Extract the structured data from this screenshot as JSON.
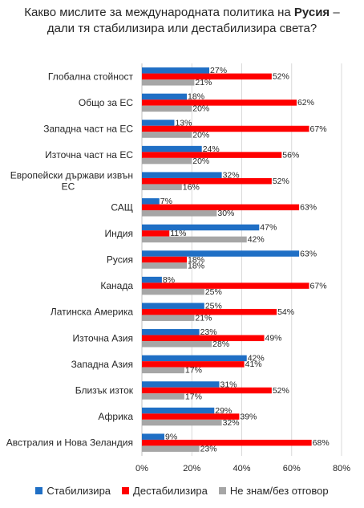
{
  "title": {
    "line1_prefix": "Какво мислите за международната политика на ",
    "line1_bold": "Русия",
    "line1_suffix": " –",
    "line2": "дали тя стабилизира или дестабилизира света?"
  },
  "colors": {
    "stabilize": "#1f6fc5",
    "destabilize": "#ff0000",
    "dontknow": "#a6a6a6",
    "grid": "#d9d9d9",
    "text": "#262626"
  },
  "chart_data": {
    "type": "bar",
    "orientation": "horizontal",
    "categories": [
      "Глобална стойност",
      "Общо за ЕС",
      "Западна част на ЕС",
      "Източна част на ЕС",
      "Европейски държави извън ЕС",
      "САЩ",
      "Индия",
      "Русия",
      "Канада",
      "Латинска Америка",
      "Източна Азия",
      "Западна Азия",
      "Близък изток",
      "Африка",
      "Австралия и Нова Зеландия"
    ],
    "series": [
      {
        "name": "Стабилизира",
        "values": [
          27,
          18,
          13,
          24,
          32,
          7,
          47,
          63,
          8,
          25,
          23,
          42,
          31,
          29,
          9
        ]
      },
      {
        "name": "Дестабилизира",
        "values": [
          52,
          62,
          67,
          56,
          52,
          63,
          11,
          18,
          67,
          54,
          49,
          41,
          52,
          39,
          68
        ]
      },
      {
        "name": "Не знам/без отговор",
        "values": [
          21,
          20,
          20,
          20,
          16,
          30,
          42,
          18,
          25,
          21,
          28,
          17,
          17,
          32,
          23
        ]
      }
    ],
    "value_suffix": "%",
    "xlim": [
      0,
      80
    ],
    "xticks": [
      "0%",
      "20%",
      "40%",
      "60%",
      "80%"
    ],
    "grid": true,
    "legend_position": "bottom"
  }
}
